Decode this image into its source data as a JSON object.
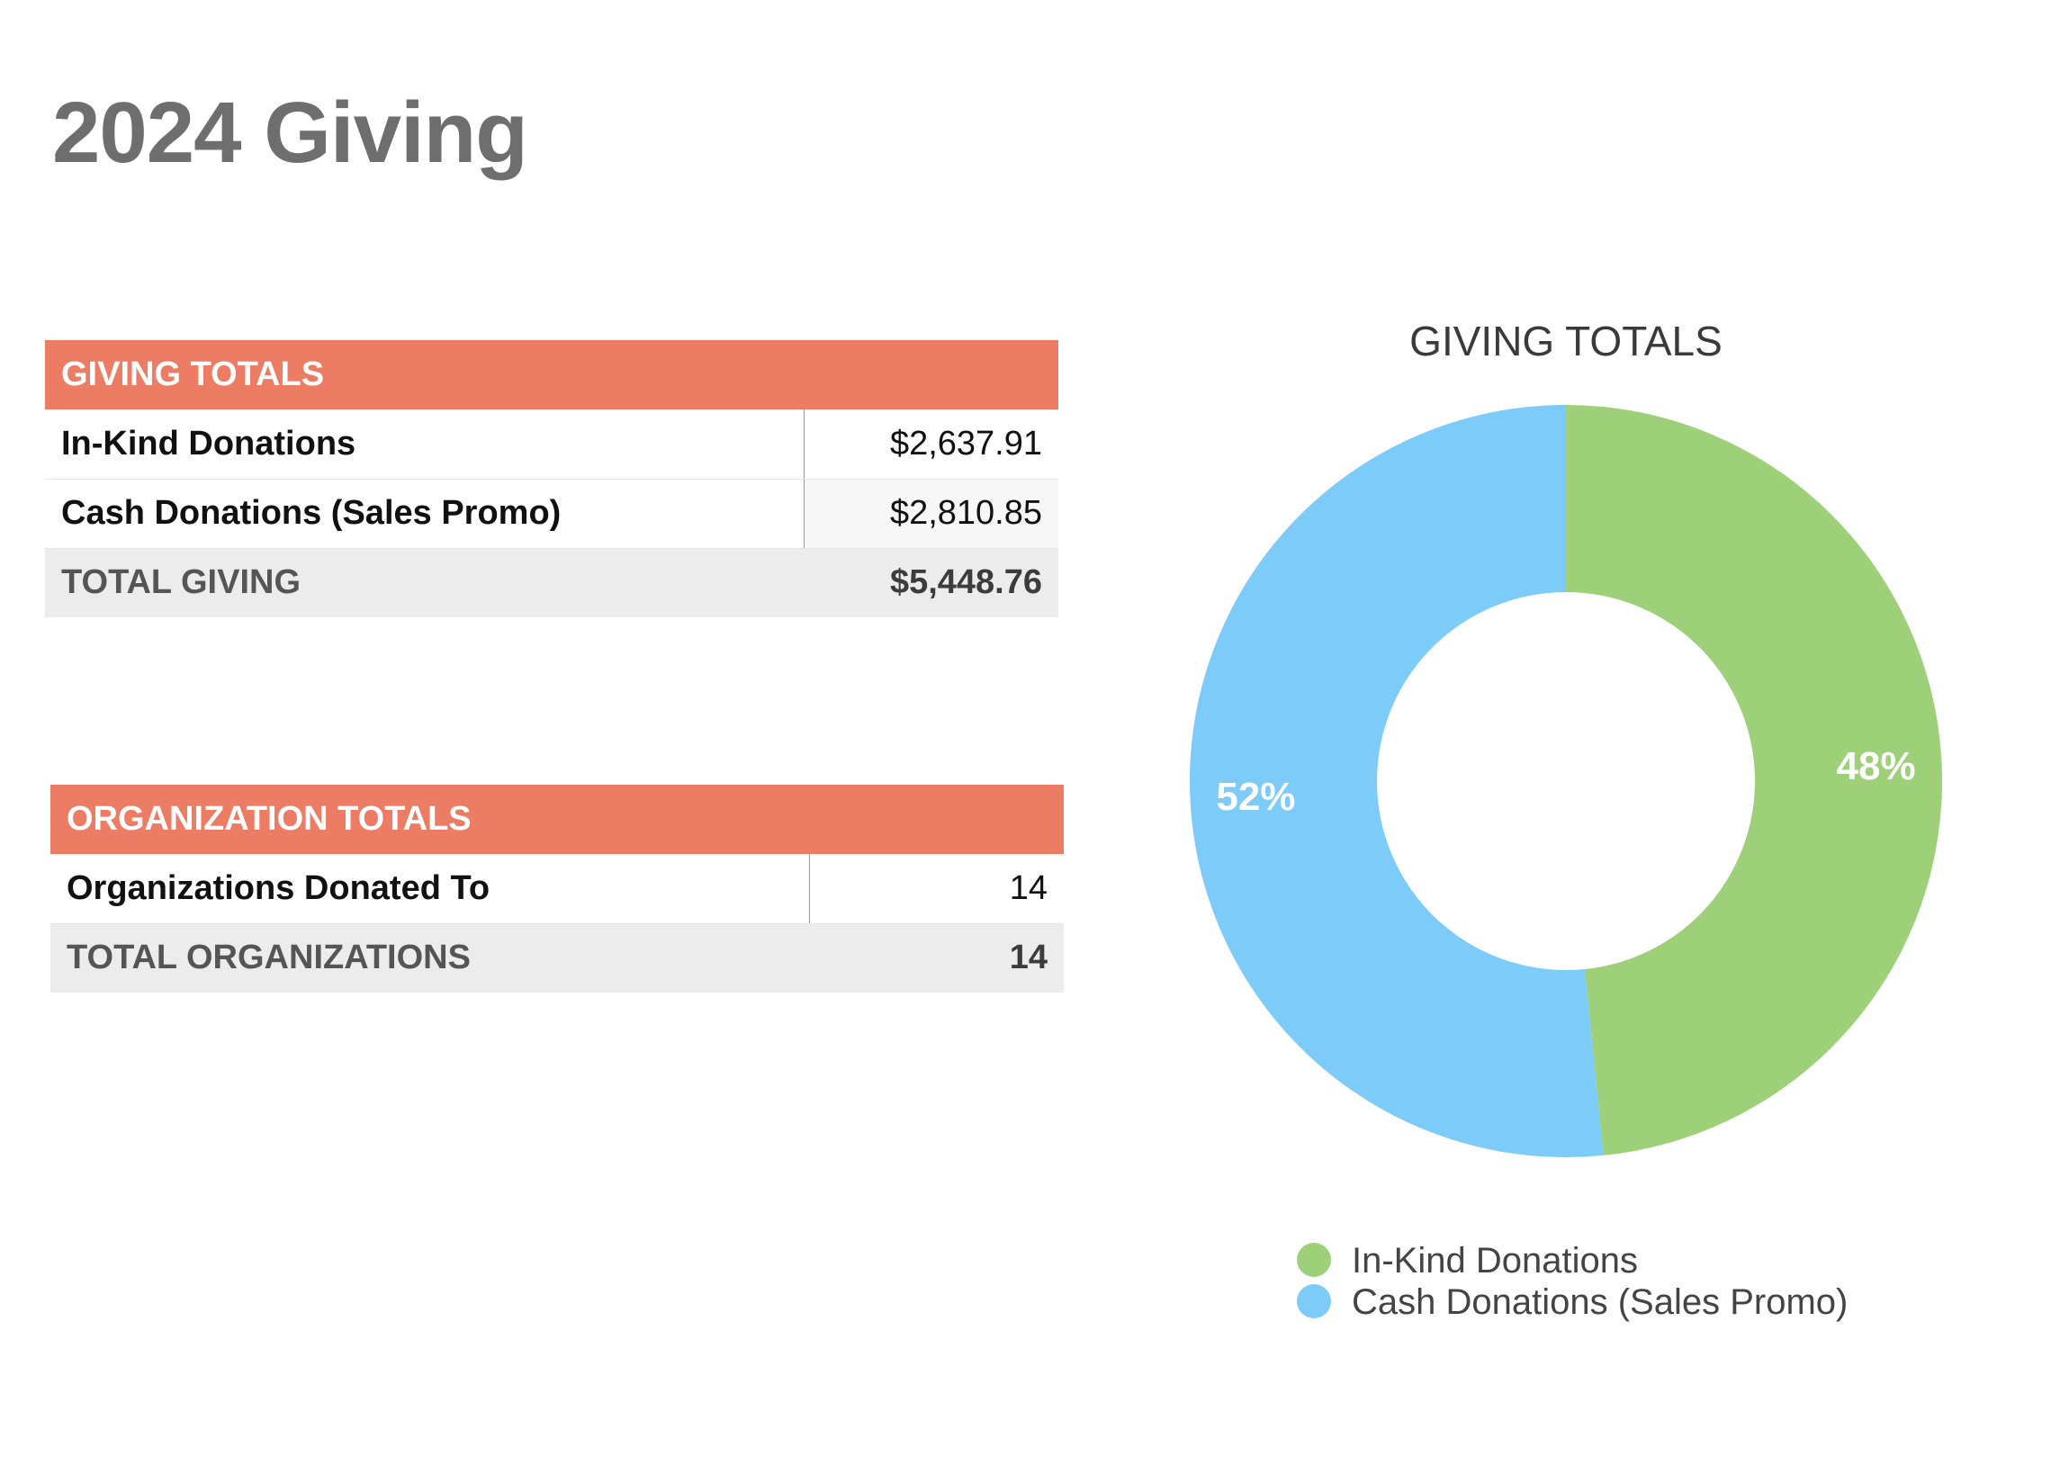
{
  "page": {
    "title": "2024 Giving"
  },
  "giving_table": {
    "header": "GIVING TOTALS",
    "rows": [
      {
        "label": "In-Kind Donations",
        "value": "$2,637.91"
      },
      {
        "label": "Cash Donations (Sales Promo)",
        "value": "$2,810.85"
      }
    ],
    "total": {
      "label": "TOTAL GIVING",
      "value": "$5,448.76"
    }
  },
  "org_table": {
    "header": "ORGANIZATION TOTALS",
    "rows": [
      {
        "label": "Organizations Donated To",
        "value": "14"
      }
    ],
    "total": {
      "label": "TOTAL ORGANIZATIONS",
      "value": "14"
    }
  },
  "colors": {
    "header_bg": "#ec7c63",
    "in_kind": "#9ed07a",
    "cash": "#7ccbf8"
  },
  "chart_data": {
    "type": "pie",
    "donut": true,
    "title": "GIVING TOTALS",
    "categories": [
      "In-Kind Donations",
      "Cash Donations (Sales Promo)"
    ],
    "values": [
      2637.91,
      2810.85
    ],
    "labels": [
      "48%",
      "52%"
    ],
    "colors": [
      "#9ed07a",
      "#7ccbf8"
    ],
    "start": "12 o'clock",
    "direction": "clockwise",
    "legend": {
      "position": "bottom",
      "entries": [
        "In-Kind Donations",
        "Cash Donations (Sales Promo)"
      ]
    }
  }
}
